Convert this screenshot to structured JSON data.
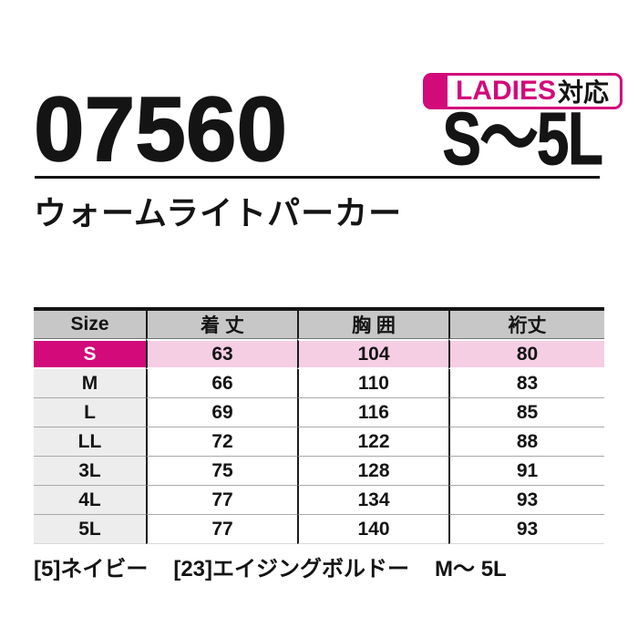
{
  "product": {
    "code": "07560",
    "name": "ウォームライトパーカー",
    "size_range": "S〜5L"
  },
  "badge": {
    "ladies_label": "LADIES",
    "taiou_label": "対応"
  },
  "table": {
    "headers": [
      "Size",
      "着 丈",
      "胸 囲",
      "裄丈"
    ],
    "rows": [
      {
        "size": "S",
        "values": [
          "63",
          "104",
          "80"
        ],
        "highlighted": true
      },
      {
        "size": "M",
        "values": [
          "66",
          "110",
          "83"
        ],
        "highlighted": false
      },
      {
        "size": "L",
        "values": [
          "69",
          "116",
          "85"
        ],
        "highlighted": false
      },
      {
        "size": "LL",
        "values": [
          "72",
          "122",
          "88"
        ],
        "highlighted": false
      },
      {
        "size": "3L",
        "values": [
          "75",
          "128",
          "91"
        ],
        "highlighted": false
      },
      {
        "size": "4L",
        "values": [
          "77",
          "134",
          "93"
        ],
        "highlighted": false
      },
      {
        "size": "5L",
        "values": [
          "77",
          "140",
          "93"
        ],
        "highlighted": false
      }
    ]
  },
  "footer": {
    "color_navy": "[5]ネイビー",
    "color_bordeaux": "[23]エイジングボルドー",
    "size_note": "M〜 5L"
  },
  "colors": {
    "accent_magenta": "#d20a7a",
    "highlight_pink": "#f5cee4",
    "header_gray": "#c7c7c7",
    "size_column_gray": "#ededed",
    "text_black": "#141414"
  }
}
